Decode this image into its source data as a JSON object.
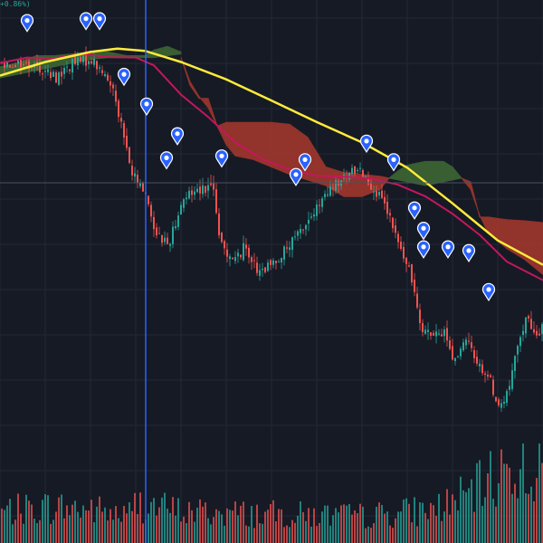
{
  "header": {
    "change_label": "+0.86%)"
  },
  "colors": {
    "background": "#161a25",
    "grid": "#232836",
    "crosshair_h": "#4a5060",
    "crosshair_v": "#2962ff",
    "up": "#26a69a",
    "down": "#ef5350",
    "ma_long": "#ffeb3b",
    "ma_short": "#c2185b",
    "cloud_bull": "#3e6b34",
    "cloud_bear": "#a8382e",
    "marker": "#2962ff"
  },
  "chart_data": {
    "type": "candlestick",
    "title": "",
    "xlabel": "",
    "ylabel": "",
    "grid": true,
    "ylim": [
      0,
      100
    ],
    "price_trend": [
      [
        0,
        83
      ],
      [
        20,
        83
      ],
      [
        40,
        82
      ],
      [
        60,
        79
      ],
      [
        80,
        83
      ],
      [
        100,
        84
      ],
      [
        110,
        81
      ],
      [
        125,
        76
      ],
      [
        135,
        64
      ],
      [
        145,
        53
      ],
      [
        160,
        48
      ],
      [
        170,
        38
      ],
      [
        185,
        34
      ],
      [
        200,
        46
      ],
      [
        215,
        49
      ],
      [
        235,
        50
      ],
      [
        240,
        36
      ],
      [
        250,
        32
      ],
      [
        260,
        30
      ],
      [
        270,
        34
      ],
      [
        285,
        26
      ],
      [
        300,
        29
      ],
      [
        320,
        34
      ],
      [
        335,
        39
      ],
      [
        350,
        44
      ],
      [
        365,
        49
      ],
      [
        380,
        52
      ],
      [
        395,
        55
      ],
      [
        410,
        50
      ],
      [
        425,
        44
      ],
      [
        440,
        34
      ],
      [
        455,
        24
      ],
      [
        465,
        12
      ],
      [
        480,
        9
      ],
      [
        490,
        11
      ],
      [
        500,
        3
      ],
      [
        515,
        8
      ],
      [
        530,
        1
      ],
      [
        540,
        -2
      ],
      [
        550,
        -10
      ],
      [
        560,
        -6
      ],
      [
        570,
        5
      ],
      [
        580,
        15
      ],
      [
        590,
        9
      ],
      [
        600,
        13
      ]
    ],
    "volume_profile": [
      [
        0,
        0.35
      ],
      [
        50,
        0.4
      ],
      [
        100,
        0.38
      ],
      [
        140,
        0.3
      ],
      [
        150,
        0.45
      ],
      [
        200,
        0.35
      ],
      [
        300,
        0.32
      ],
      [
        400,
        0.3
      ],
      [
        480,
        0.38
      ],
      [
        520,
        0.55
      ],
      [
        560,
        0.85
      ],
      [
        600,
        0.75
      ]
    ],
    "ma_long": [
      [
        0,
        79.6
      ],
      [
        50,
        83.3
      ],
      [
        100,
        86
      ],
      [
        130,
        86.9
      ],
      [
        160,
        86.3
      ],
      [
        200,
        83.3
      ],
      [
        250,
        78.6
      ],
      [
        300,
        72.9
      ],
      [
        350,
        67.1
      ],
      [
        400,
        61.6
      ],
      [
        450,
        54.8
      ],
      [
        500,
        45.2
      ],
      [
        550,
        35.2
      ],
      [
        600,
        28.6
      ]
    ],
    "ma_short": [
      [
        0,
        83
      ],
      [
        30,
        84.5
      ],
      [
        60,
        84.3
      ],
      [
        90,
        85.5
      ],
      [
        120,
        84.6
      ],
      [
        150,
        84.5
      ],
      [
        170,
        82.4
      ],
      [
        200,
        74.5
      ],
      [
        230,
        68.5
      ],
      [
        260,
        61.6
      ],
      [
        290,
        57.1
      ],
      [
        320,
        54.3
      ],
      [
        350,
        52.6
      ],
      [
        380,
        52.4
      ],
      [
        410,
        51.9
      ],
      [
        440,
        50.2
      ],
      [
        470,
        47.1
      ],
      [
        500,
        42.4
      ],
      [
        530,
        36.7
      ],
      [
        560,
        29.5
      ],
      [
        600,
        24.5
      ]
    ],
    "cloud_bull": [
      {
        "x": [
          0,
          20,
          40,
          60,
          80,
          100,
          120,
          140,
          160,
          170,
          185,
          200
        ],
        "top": [
          82,
          83,
          85,
          85,
          85.5,
          86,
          86,
          85,
          85,
          86.5,
          87.5,
          86
        ],
        "bottom": [
          79,
          80,
          81,
          82,
          83,
          84,
          84.5,
          84.5,
          84.5,
          84.5,
          85,
          85.5
        ]
      },
      {
        "x": [
          430,
          440,
          450,
          460,
          470,
          480,
          490,
          500,
          510
        ],
        "top": [
          52,
          54,
          55.5,
          56,
          56.5,
          56.5,
          56.5,
          55,
          52
        ],
        "bottom": [
          52,
          51.5,
          51,
          50.5,
          50,
          50.5,
          51,
          51.5,
          52
        ]
      }
    ],
    "cloud_bear": [
      {
        "x": [
          200,
          210,
          220,
          230,
          240,
          250,
          260,
          280,
          300,
          320,
          340,
          360,
          380,
          400,
          420,
          430
        ],
        "top": [
          84.5,
          77,
          73.5,
          73.5,
          66,
          67,
          67,
          67,
          67,
          66.5,
          63,
          55,
          53.5,
          53,
          52.5,
          52
        ],
        "bottom": [
          84.5,
          78,
          74,
          71,
          66,
          61,
          58,
          57,
          55,
          53,
          51.5,
          50,
          47,
          47,
          49,
          52
        ]
      },
      {
        "x": [
          510,
          520,
          530,
          540,
          560,
          580,
          600
        ],
        "top": [
          52,
          51,
          41.5,
          41.5,
          40.8,
          40.5,
          40
        ],
        "bottom": [
          52,
          49,
          42,
          37,
          33,
          30,
          26
        ]
      }
    ],
    "markers": [
      [
        30,
        93.5
      ],
      [
        95,
        94
      ],
      [
        110,
        94
      ],
      [
        137,
        79
      ],
      [
        162,
        71
      ],
      [
        196,
        63
      ],
      [
        184,
        56.5
      ],
      [
        245,
        57
      ],
      [
        337,
        56
      ],
      [
        327,
        52
      ],
      [
        405,
        61
      ],
      [
        435,
        56
      ],
      [
        458,
        43
      ],
      [
        468,
        37.5
      ],
      [
        468,
        32.5
      ],
      [
        495,
        32.5
      ],
      [
        518,
        31.5
      ],
      [
        540,
        21
      ]
    ]
  }
}
